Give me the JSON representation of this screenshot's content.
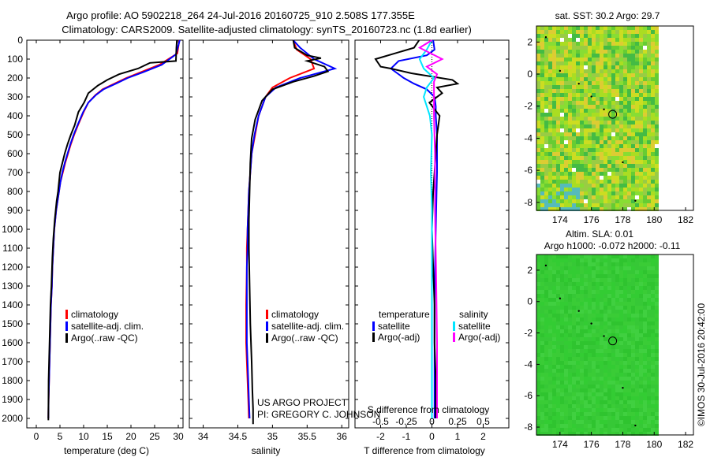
{
  "header": {
    "line1": "Argo profile: AO 5902218_264 24-Jul-2016 20160725_910 2.508S 177.355E",
    "line2": "Climatology: CARS2009. Satellite-adjusted climatology: synTS_20160723.nc (1.8d earlier)"
  },
  "side_label": "©IMOS 30-Jul-2016 20:42:00",
  "project_note": {
    "line1": "US ARGO PROJECT",
    "line2": "PI: GREGORY C. JOHNSON"
  },
  "depth_ticks": [
    0,
    100,
    200,
    300,
    400,
    500,
    600,
    700,
    800,
    900,
    1000,
    1100,
    1200,
    1300,
    1400,
    1500,
    1600,
    1700,
    1800,
    1900,
    2000
  ],
  "colors": {
    "climatology": "#ff0000",
    "satellite": "#0000ff",
    "argo": "#000000",
    "sal_satellite": "#00e5ff",
    "sal_argo": "#ff00ff",
    "map_ocean": "#33cc33",
    "map_marker": "#000000"
  },
  "chart_data": [
    {
      "type": "line",
      "panel": "temperature",
      "xlabel": "temperature (deg C)",
      "xticks": [
        "0",
        "5",
        "10",
        "15",
        "20",
        "25",
        "30"
      ],
      "xlim": [
        -2,
        31
      ],
      "ylim": [
        2050,
        0
      ],
      "legend": [
        "climatology",
        "satellite-adj. clim.",
        "Argo(..raw -QC)"
      ],
      "legend_position": "lower-left",
      "series": [
        {
          "name": "climatology",
          "color": "#ff0000",
          "x": [
            30.2,
            30.1,
            29.8,
            26.0,
            22.0,
            19.0,
            16.5,
            14.0,
            12.5,
            11.0,
            10.0,
            8.8,
            8.0,
            7.3,
            6.7,
            6.1,
            5.6,
            5.1,
            4.8,
            4.5,
            4.2,
            4.0,
            3.8,
            3.6,
            3.4,
            3.3,
            3.1,
            3.0,
            2.9,
            2.8,
            2.7,
            2.6,
            2.55
          ],
          "y": [
            0,
            20,
            70,
            130,
            170,
            200,
            230,
            260,
            290,
            330,
            380,
            450,
            500,
            550,
            600,
            650,
            700,
            750,
            800,
            850,
            900,
            950,
            1000,
            1100,
            1200,
            1300,
            1400,
            1500,
            1600,
            1700,
            1800,
            1900,
            2000
          ]
        },
        {
          "name": "satellite-adj. clim.",
          "color": "#0000ff",
          "x": [
            30.3,
            30.1,
            29.5,
            26.5,
            22.5,
            19.3,
            16.8,
            14.2,
            12.6,
            11.0,
            9.9,
            8.7,
            7.9,
            7.2,
            6.6,
            6.0,
            5.5,
            5.1,
            4.8,
            4.5,
            4.2,
            4.0,
            3.8,
            3.6,
            3.4,
            3.3,
            3.1,
            3.0,
            2.9,
            2.8,
            2.7,
            2.6,
            2.55
          ],
          "y": [
            0,
            20,
            75,
            130,
            170,
            200,
            230,
            260,
            290,
            330,
            380,
            450,
            500,
            550,
            600,
            650,
            700,
            750,
            800,
            850,
            900,
            950,
            1000,
            1100,
            1200,
            1300,
            1400,
            1500,
            1600,
            1700,
            1800,
            1900,
            2000
          ]
        },
        {
          "name": "Argo(..raw -QC)",
          "color": "#000000",
          "x": [
            29.7,
            29.6,
            29.5,
            24.0,
            21.5,
            17.5,
            15.0,
            13.0,
            11.0,
            10.1,
            8.9,
            8.1,
            7.3,
            6.6,
            6.0,
            5.5,
            5.0,
            4.6,
            4.3,
            4.1,
            3.9,
            3.6,
            3.4,
            3.2,
            3.0,
            2.9,
            2.8,
            2.7,
            2.6,
            2.55
          ],
          "y": [
            0,
            40,
            110,
            120,
            150,
            180,
            210,
            240,
            280,
            330,
            380,
            450,
            500,
            550,
            600,
            650,
            700,
            800,
            850,
            900,
            950,
            1050,
            1150,
            1300,
            1400,
            1500,
            1600,
            1700,
            1800,
            2010
          ]
        }
      ]
    },
    {
      "type": "line",
      "panel": "salinity",
      "xlabel": "salinity",
      "xticks": [
        "34",
        "34.5",
        "35",
        "35.5",
        "36"
      ],
      "xlim": [
        33.8,
        36.1
      ],
      "ylim": [
        2050,
        0
      ],
      "legend": [
        "climatology",
        "satellite-adj. clim.",
        "Argo(..raw -QC)"
      ],
      "legend_position": "lower-right",
      "series": [
        {
          "name": "climatology",
          "color": "#ff0000",
          "x": [
            35.3,
            35.35,
            35.55,
            35.6,
            35.25,
            35.0,
            34.9,
            34.8,
            34.75,
            34.7,
            34.68,
            34.66,
            34.65,
            34.64,
            34.63,
            34.63,
            34.62,
            34.62,
            34.63,
            34.64,
            34.65,
            34.66
          ],
          "y": [
            0,
            50,
            100,
            150,
            200,
            250,
            300,
            400,
            500,
            600,
            700,
            800,
            900,
            1000,
            1100,
            1200,
            1400,
            1600,
            1700,
            1800,
            1900,
            2000
          ]
        },
        {
          "name": "satellite-adj. clim.",
          "color": "#0000ff",
          "x": [
            35.3,
            35.4,
            35.6,
            35.9,
            35.4,
            35.05,
            34.9,
            34.8,
            34.74,
            34.7,
            34.68,
            34.66,
            34.65,
            34.64,
            34.64,
            34.63,
            34.63,
            34.63,
            34.64,
            34.65,
            34.66,
            34.67
          ],
          "y": [
            0,
            40,
            100,
            150,
            200,
            250,
            300,
            400,
            500,
            600,
            700,
            800,
            900,
            1000,
            1100,
            1200,
            1400,
            1600,
            1700,
            1800,
            1900,
            2000
          ]
        },
        {
          "name": "Argo(..raw -QC)",
          "color": "#000000",
          "x": [
            35.3,
            35.32,
            35.5,
            35.7,
            35.5,
            35.75,
            35.8,
            35.6,
            35.3,
            35.0,
            34.85,
            34.75,
            34.7,
            34.68,
            34.67,
            34.66,
            34.66,
            34.67,
            34.68,
            34.7,
            34.71,
            34.72,
            34.72
          ],
          "y": [
            0,
            40,
            80,
            95,
            110,
            140,
            165,
            190,
            220,
            260,
            320,
            420,
            520,
            650,
            800,
            950,
            1100,
            1300,
            1500,
            1700,
            1850,
            1950,
            2030
          ]
        }
      ]
    },
    {
      "type": "line",
      "panel": "difference",
      "xlabel": "T difference from climatology",
      "xlabel2": "S difference from climatology",
      "xticks_T": [
        "-2",
        "-1",
        "0",
        "1",
        "2"
      ],
      "xlim_T": [
        -3,
        3
      ],
      "xticks_S": [
        "-0.5",
        "-0.25",
        "0",
        "0.25",
        "0.5"
      ],
      "xlim_S": [
        -0.75,
        0.75
      ],
      "ylim": [
        2050,
        0
      ],
      "legend_columns": [
        "temperature",
        "salinity"
      ],
      "legend": [
        "satellite",
        "Argo(-adj)",
        "satellite",
        "Argo(-adj)"
      ],
      "series": [
        {
          "name": "satellite",
          "group": "temperature",
          "color": "#0000ff",
          "x": [
            0.05,
            0.1,
            -0.2,
            -1.3,
            -1.6,
            -1.1,
            -0.7,
            -0.2,
            0.1,
            0.15,
            0.15,
            0.2,
            0.2,
            0.2,
            0.18,
            0.15,
            0.12,
            0.1,
            0.1,
            0.1,
            0.1
          ],
          "y": [
            0,
            50,
            80,
            110,
            150,
            200,
            230,
            260,
            300,
            350,
            400,
            500,
            600,
            700,
            800,
            1000,
            1200,
            1400,
            1600,
            1800,
            2000
          ]
        },
        {
          "name": "Argo(-adj)",
          "group": "temperature",
          "color": "#000000",
          "x": [
            -0.5,
            -0.7,
            -2.2,
            -2.0,
            -1.6,
            -0.8,
            0.8,
            1.0,
            0.2,
            0.4,
            -0.1,
            0.3,
            0.2,
            0.15,
            0.1,
            0.05,
            0.0,
            0.05,
            0.1,
            0.1,
            0.15,
            0.15
          ],
          "y": [
            0,
            40,
            100,
            140,
            150,
            175,
            210,
            230,
            250,
            280,
            330,
            400,
            500,
            600,
            700,
            800,
            1000,
            1200,
            1400,
            1600,
            1800,
            2000
          ]
        },
        {
          "name": "satellite",
          "group": "salinity",
          "color": "#00e5ff",
          "x": [
            0.0,
            -0.05,
            -0.12,
            -0.08,
            0.02,
            -0.05,
            -0.08,
            -0.02,
            0.0,
            -0.01,
            0.0,
            0.0,
            0.0,
            0.0
          ],
          "y": [
            0,
            50,
            100,
            150,
            200,
            250,
            300,
            400,
            500,
            700,
            900,
            1200,
            1600,
            2000
          ]
        },
        {
          "name": "Argo(-adj)",
          "group": "salinity",
          "color": "#ff00ff",
          "x": [
            0.0,
            -0.12,
            0.1,
            -0.05,
            0.05,
            0.02,
            0.02,
            0.02,
            0.03,
            0.03,
            0.04,
            0.05,
            0.05
          ],
          "y": [
            0,
            40,
            100,
            140,
            180,
            220,
            300,
            400,
            600,
            900,
            1200,
            1600,
            2000
          ]
        }
      ]
    },
    {
      "type": "heatmap",
      "panel": "sst_map",
      "title": "sat. SST: 30.2 Argo: 29.7",
      "xticks": [
        "174",
        "176",
        "178",
        "180",
        "182"
      ],
      "yticks": [
        "2",
        "0",
        "-2",
        "-4",
        "-6",
        "-8"
      ],
      "xlim": [
        172.5,
        182.5
      ],
      "ylim": [
        -8.5,
        3.0
      ],
      "argo_position": {
        "lon": 177.355,
        "lat": -2.508
      }
    },
    {
      "type": "heatmap",
      "panel": "sla_map",
      "title": "Altim. SLA: 0.01",
      "title2": "Argo h1000: -0.072 h2000: -0.11",
      "xticks": [
        "174",
        "176",
        "178",
        "180",
        "182"
      ],
      "yticks": [
        "2",
        "0",
        "-2",
        "-4",
        "-6",
        "-8"
      ],
      "xlim": [
        172.5,
        182.5
      ],
      "ylim": [
        -8.5,
        3.0
      ],
      "argo_position": {
        "lon": 177.355,
        "lat": -2.508
      }
    }
  ]
}
